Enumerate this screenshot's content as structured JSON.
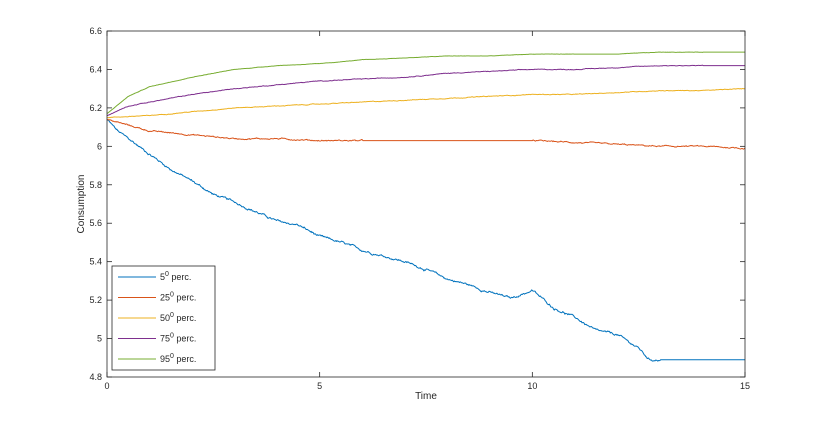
{
  "chart_data": {
    "type": "line",
    "title": "",
    "xlabel": "Time",
    "ylabel": "Consumption",
    "xlim": [
      0,
      15
    ],
    "ylim": [
      4.8,
      6.6
    ],
    "xticks": [
      0,
      5,
      10,
      15
    ],
    "xtick_labels": [
      "0",
      "5",
      "10",
      "15"
    ],
    "yticks": [
      4.8,
      5.0,
      5.2,
      5.4,
      5.6,
      5.8,
      6.0,
      6.2,
      6.4,
      6.6
    ],
    "ytick_labels": [
      "4.8",
      "5",
      "5.2",
      "5.4",
      "5.6",
      "5.8",
      "6",
      "6.2",
      "6.4",
      "6.6"
    ],
    "grid": false,
    "legend_position": "bottom-left",
    "series": [
      {
        "name_base": "5",
        "name_sup": "0",
        "name_tail": " perc.",
        "color": "#0072BD",
        "x": [
          0,
          0.25,
          0.5,
          1,
          1.5,
          2,
          2.5,
          3,
          3.5,
          4,
          4.5,
          5,
          5.5,
          6,
          6.5,
          7,
          7.5,
          8,
          8.5,
          9,
          9.5,
          10,
          10.5,
          11,
          11.5,
          12,
          12.5,
          12.75,
          13,
          13.5,
          14,
          14.5,
          15
        ],
        "y": [
          6.14,
          6.08,
          6.04,
          5.96,
          5.88,
          5.82,
          5.75,
          5.71,
          5.66,
          5.61,
          5.59,
          5.53,
          5.5,
          5.46,
          5.43,
          5.4,
          5.36,
          5.31,
          5.28,
          5.24,
          5.21,
          5.25,
          5.16,
          5.11,
          5.04,
          5.02,
          4.95,
          4.89,
          4.89,
          4.89,
          4.89,
          4.89,
          4.89
        ],
        "noise": 0.007
      },
      {
        "name_base": "25",
        "name_sup": "0",
        "name_tail": " perc.",
        "color": "#D95319",
        "x": [
          0,
          0.5,
          1,
          2,
          3,
          4,
          5,
          6,
          7,
          8,
          9,
          10,
          11,
          12,
          13,
          14,
          15
        ],
        "y": [
          6.14,
          6.11,
          6.08,
          6.06,
          6.04,
          6.04,
          6.03,
          6.03,
          6.03,
          6.03,
          6.03,
          6.03,
          6.02,
          6.01,
          6.0,
          6.0,
          5.99
        ],
        "noise": 0.004
      },
      {
        "name_base": "50",
        "name_sup": "0",
        "name_tail": " perc.",
        "color": "#EDB120",
        "x": [
          0,
          1,
          2,
          3,
          4,
          5,
          6,
          7,
          8,
          9,
          10,
          11,
          12,
          13,
          14,
          15
        ],
        "y": [
          6.15,
          6.16,
          6.18,
          6.2,
          6.21,
          6.22,
          6.23,
          6.24,
          6.25,
          6.26,
          6.27,
          6.27,
          6.28,
          6.29,
          6.29,
          6.3
        ],
        "noise": 0.002
      },
      {
        "name_base": "75",
        "name_sup": "0",
        "name_tail": " perc.",
        "color": "#7E2F8E",
        "x": [
          0,
          0.5,
          1,
          2,
          3,
          4,
          5,
          6,
          7,
          8,
          9,
          10,
          11,
          12,
          13,
          14,
          15
        ],
        "y": [
          6.16,
          6.21,
          6.23,
          6.27,
          6.3,
          6.32,
          6.34,
          6.35,
          6.36,
          6.38,
          6.39,
          6.4,
          6.4,
          6.41,
          6.42,
          6.42,
          6.42
        ],
        "noise": 0.002
      },
      {
        "name_base": "95",
        "name_sup": "0",
        "name_tail": " perc.",
        "color": "#77AC30",
        "x": [
          0,
          0.5,
          1,
          2,
          3,
          4,
          5,
          6,
          7,
          8,
          9,
          10,
          11,
          12,
          13,
          14,
          15
        ],
        "y": [
          6.17,
          6.26,
          6.31,
          6.36,
          6.4,
          6.42,
          6.43,
          6.45,
          6.46,
          6.47,
          6.47,
          6.48,
          6.48,
          6.48,
          6.49,
          6.49,
          6.49
        ],
        "noise": 0.001
      }
    ]
  }
}
